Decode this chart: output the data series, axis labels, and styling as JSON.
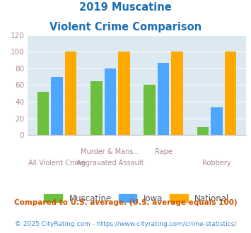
{
  "title_line1": "2019 Muscatine",
  "title_line2": "Violent Crime Comparison",
  "cat_labels_row1": [
    "",
    "Murder & Mans...",
    "Rape",
    ""
  ],
  "cat_labels_row2": [
    "All Violent Crime",
    "Aggravated Assault",
    "",
    "Robbery"
  ],
  "muscatine": [
    52,
    65,
    60,
    10
  ],
  "iowa": [
    70,
    80,
    87,
    33
  ],
  "national": [
    100,
    100,
    100,
    100
  ],
  "muscatine_color": "#6dbf3e",
  "iowa_color": "#4da6ff",
  "national_color": "#ffaa00",
  "bg_color": "#dce9f0",
  "ylim": [
    0,
    120
  ],
  "yticks": [
    0,
    20,
    40,
    60,
    80,
    100,
    120
  ],
  "legend_labels": [
    "Muscatine",
    "Iowa",
    "National"
  ],
  "footnote1": "Compared to U.S. average. (U.S. average equals 100)",
  "footnote2": "© 2025 CityRating.com - https://www.cityrating.com/crime-statistics/",
  "title_color": "#1a6eb5",
  "footnote1_color": "#cc5500",
  "footnote2_color": "#4488cc",
  "label_color": "#aa8899",
  "ytick_color": "#aa8899"
}
